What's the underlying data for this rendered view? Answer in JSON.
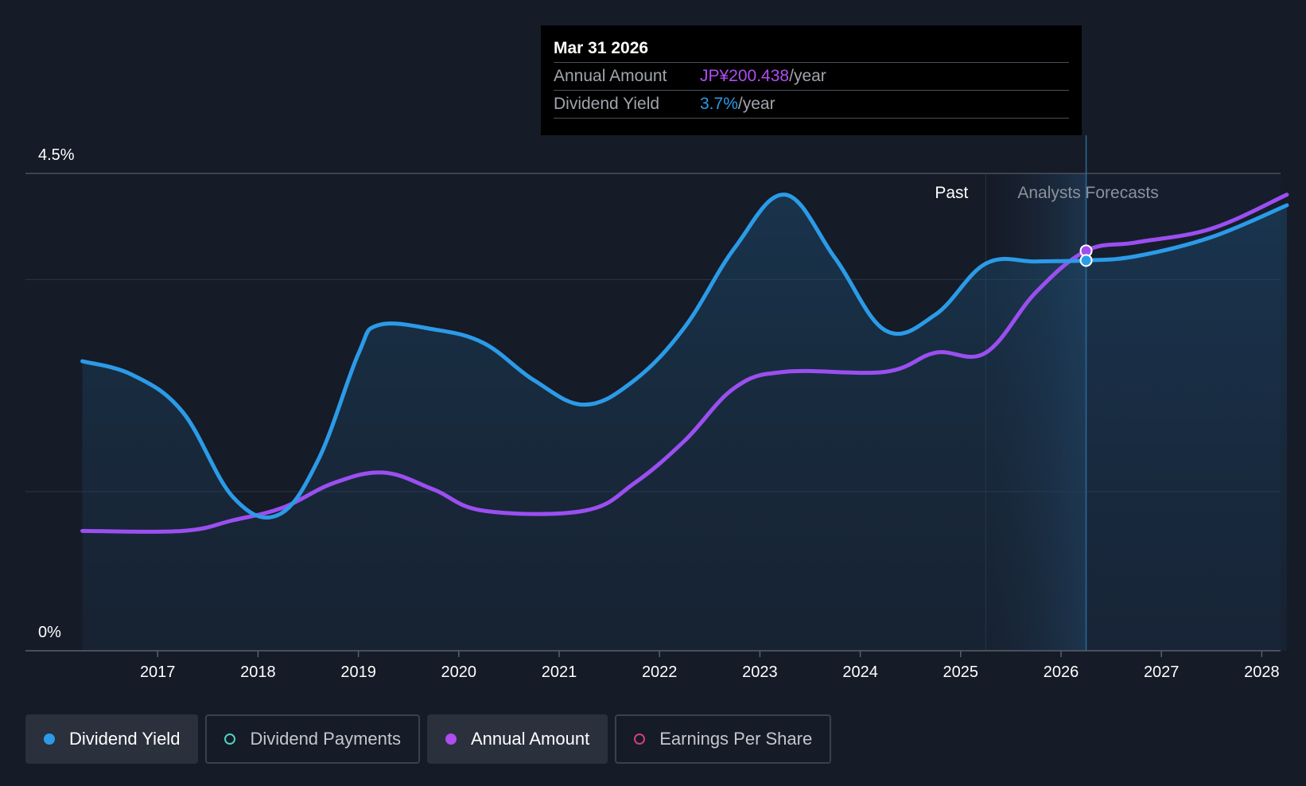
{
  "tooltip": {
    "date": "Mar 31 2026",
    "annual_label": "Annual Amount",
    "annual_value": "JP¥200.438",
    "annual_unit": "/year",
    "yield_label": "Dividend Yield",
    "yield_value": "3.7%",
    "yield_unit": "/year"
  },
  "regions": {
    "past_label": "Past",
    "forecast_label": "Analysts Forecasts"
  },
  "legend": [
    {
      "label": "Dividend Yield",
      "color": "#2b9be8",
      "active": true
    },
    {
      "label": "Dividend Payments",
      "color": "#4fd1c5",
      "active": false
    },
    {
      "label": "Annual Amount",
      "color": "#b04cf0",
      "active": true
    },
    {
      "label": "Earnings Per Share",
      "color": "#d23f7a",
      "active": false
    }
  ],
  "colors": {
    "background": "#151b27",
    "dividend_yield": "#2b9be8",
    "annual_amount": "#9b4ff0",
    "gridline": "#3a404c"
  },
  "chart_data": {
    "type": "line",
    "y_axis": {
      "min": 0,
      "max": 4.5,
      "unit": "%",
      "tick_labels": [
        "0%",
        "4.5%"
      ]
    },
    "x_axis": {
      "min": 2016.0,
      "max": 2028.25,
      "tick_labels": [
        "2017",
        "2018",
        "2019",
        "2020",
        "2021",
        "2022",
        "2023",
        "2024",
        "2025",
        "2026",
        "2027",
        "2028"
      ]
    },
    "past_forecast_boundary": 2025.25,
    "highlight_x": 2026.25,
    "series": [
      {
        "name": "Dividend Yield",
        "unit": "%",
        "points": [
          [
            2016.25,
            2.73
          ],
          [
            2016.75,
            2.6
          ],
          [
            2017.25,
            2.25
          ],
          [
            2017.75,
            1.45
          ],
          [
            2018.2,
            1.28
          ],
          [
            2018.6,
            1.8
          ],
          [
            2019.0,
            2.8
          ],
          [
            2019.2,
            3.07
          ],
          [
            2019.75,
            3.03
          ],
          [
            2020.25,
            2.9
          ],
          [
            2020.75,
            2.55
          ],
          [
            2021.25,
            2.32
          ],
          [
            2021.75,
            2.55
          ],
          [
            2022.25,
            3.05
          ],
          [
            2022.75,
            3.8
          ],
          [
            2023.25,
            4.3
          ],
          [
            2023.75,
            3.7
          ],
          [
            2024.25,
            3.02
          ],
          [
            2024.75,
            3.17
          ],
          [
            2025.25,
            3.65
          ],
          [
            2025.75,
            3.67
          ],
          [
            2026.25,
            3.68
          ],
          [
            2026.75,
            3.72
          ],
          [
            2027.5,
            3.9
          ],
          [
            2028.25,
            4.2
          ]
        ]
      },
      {
        "name": "Annual Amount",
        "unit": "JP¥",
        "points": [
          [
            2016.25,
            1.13
          ],
          [
            2017.25,
            1.13
          ],
          [
            2017.75,
            1.23
          ],
          [
            2018.25,
            1.35
          ],
          [
            2018.75,
            1.58
          ],
          [
            2019.25,
            1.68
          ],
          [
            2019.75,
            1.52
          ],
          [
            2020.25,
            1.32
          ],
          [
            2021.25,
            1.32
          ],
          [
            2021.75,
            1.58
          ],
          [
            2022.25,
            1.98
          ],
          [
            2022.75,
            2.48
          ],
          [
            2023.25,
            2.63
          ],
          [
            2024.25,
            2.63
          ],
          [
            2024.75,
            2.81
          ],
          [
            2025.25,
            2.81
          ],
          [
            2025.75,
            3.38
          ],
          [
            2026.25,
            3.77
          ],
          [
            2026.75,
            3.85
          ],
          [
            2027.5,
            3.98
          ],
          [
            2028.25,
            4.3
          ]
        ]
      }
    ],
    "highlight_points": [
      {
        "series": "Annual Amount",
        "x": 2026.25,
        "y": 3.77,
        "label": "JP¥200.438"
      },
      {
        "series": "Dividend Yield",
        "x": 2026.25,
        "y": 3.68,
        "label": "3.7%"
      }
    ]
  }
}
